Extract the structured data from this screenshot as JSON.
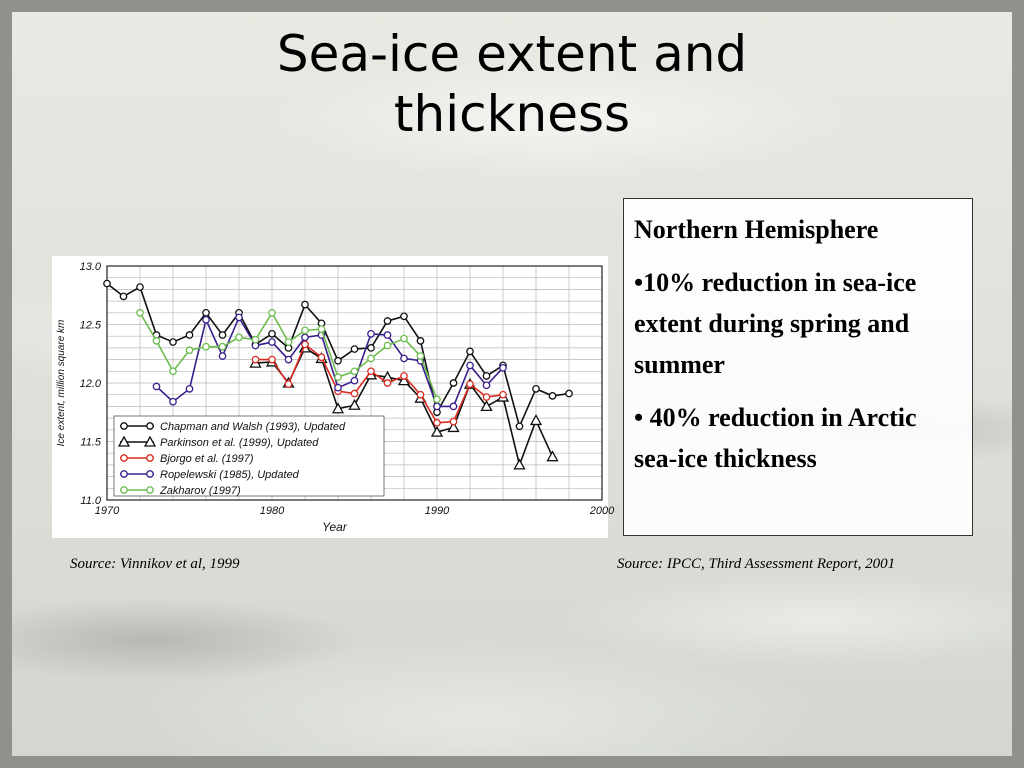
{
  "slide": {
    "title_line1": "Sea-ice extent and",
    "title_line2": "thickness",
    "source_left": "Source: Vinnikov et al, 1999",
    "source_right": "Source: IPCC, Third Assessment Report, 2001"
  },
  "infobox": {
    "heading": "Northern Hemisphere",
    "bullet1": "•10% reduction in sea-ice extent during spring and summer",
    "bullet2": "• 40% reduction in Arctic sea-ice thickness"
  },
  "chart_data": {
    "type": "line",
    "xlabel": "Year",
    "ylabel": "Ice extent, million square km",
    "xlim": [
      1970,
      2000
    ],
    "ylim": [
      11.0,
      13.0
    ],
    "xticks": [
      1970,
      1980,
      1990,
      2000
    ],
    "yticks": [
      "11.0",
      "11.5",
      "12.0",
      "12.5",
      "13.0"
    ],
    "legend_position": "bottom-left",
    "grid": true,
    "series": [
      {
        "name": "Chapman and Walsh (1993), Updated",
        "color": "#111111",
        "marker": "circle",
        "x": [
          1970,
          1971,
          1972,
          1973,
          1974,
          1975,
          1976,
          1977,
          1978,
          1979,
          1980,
          1981,
          1982,
          1983,
          1984,
          1985,
          1986,
          1987,
          1988,
          1989,
          1990,
          1991,
          1992,
          1993,
          1994,
          1995,
          1996,
          1997,
          1998
        ],
        "y": [
          12.85,
          12.74,
          12.82,
          12.41,
          12.35,
          12.41,
          12.6,
          12.41,
          12.6,
          12.33,
          12.42,
          12.3,
          12.67,
          12.51,
          12.19,
          12.29,
          12.3,
          12.53,
          12.57,
          12.36,
          11.75,
          12.0,
          12.27,
          12.06,
          12.15,
          11.63,
          11.95,
          11.89,
          11.91
        ]
      },
      {
        "name": "Parkinson et al. (1999), Updated",
        "color": "#111111",
        "marker": "triangle",
        "x": [
          1979,
          1980,
          1981,
          1982,
          1983,
          1984,
          1985,
          1986,
          1987,
          1988,
          1989,
          1990,
          1991,
          1992,
          1993,
          1994,
          1995,
          1996,
          1997
        ],
        "y": [
          12.17,
          12.18,
          12.0,
          12.3,
          12.21,
          11.78,
          11.81,
          12.07,
          12.05,
          12.02,
          11.87,
          11.58,
          11.62,
          11.99,
          11.8,
          11.88,
          11.3,
          11.68,
          11.37
        ]
      },
      {
        "name": "Bjorgo et al. (1997)",
        "color": "#d92b20",
        "marker": "circle",
        "x": [
          1979,
          1980,
          1981,
          1982,
          1983,
          1984,
          1985,
          1986,
          1987,
          1988,
          1989,
          1990,
          1991,
          1992,
          1993,
          1994
        ],
        "y": [
          12.2,
          12.2,
          11.99,
          12.33,
          12.22,
          11.93,
          11.91,
          12.1,
          12.0,
          12.06,
          11.9,
          11.66,
          11.67,
          11.99,
          11.88,
          11.9
        ]
      },
      {
        "name": "Ropelewski (1985), Updated",
        "color": "#3a1f8c",
        "marker": "circle",
        "x": [
          1973,
          1974,
          1975,
          1976,
          1977,
          1978,
          1979,
          1980,
          1981,
          1982,
          1983,
          1984,
          1985,
          1986,
          1987,
          1988,
          1989,
          1990,
          1991,
          1992,
          1993,
          1994
        ],
        "y": [
          11.97,
          11.84,
          11.95,
          12.54,
          12.23,
          12.56,
          12.32,
          12.35,
          12.2,
          12.39,
          12.41,
          11.96,
          12.02,
          12.42,
          12.41,
          12.21,
          12.19,
          11.8,
          11.8,
          12.15,
          11.98,
          12.13
        ]
      },
      {
        "name": "Zakharov (1997)",
        "color": "#6cbd4e",
        "marker": "circle",
        "x": [
          1972,
          1973,
          1974,
          1975,
          1976,
          1977,
          1978,
          1979,
          1980,
          1981,
          1982,
          1983,
          1984,
          1985,
          1986,
          1987,
          1988,
          1989,
          1990
        ],
        "y": [
          12.6,
          12.36,
          12.1,
          12.28,
          12.31,
          12.31,
          12.39,
          12.37,
          12.6,
          12.35,
          12.45,
          12.46,
          12.05,
          12.1,
          12.21,
          12.32,
          12.38,
          12.23,
          11.86
        ]
      }
    ]
  }
}
